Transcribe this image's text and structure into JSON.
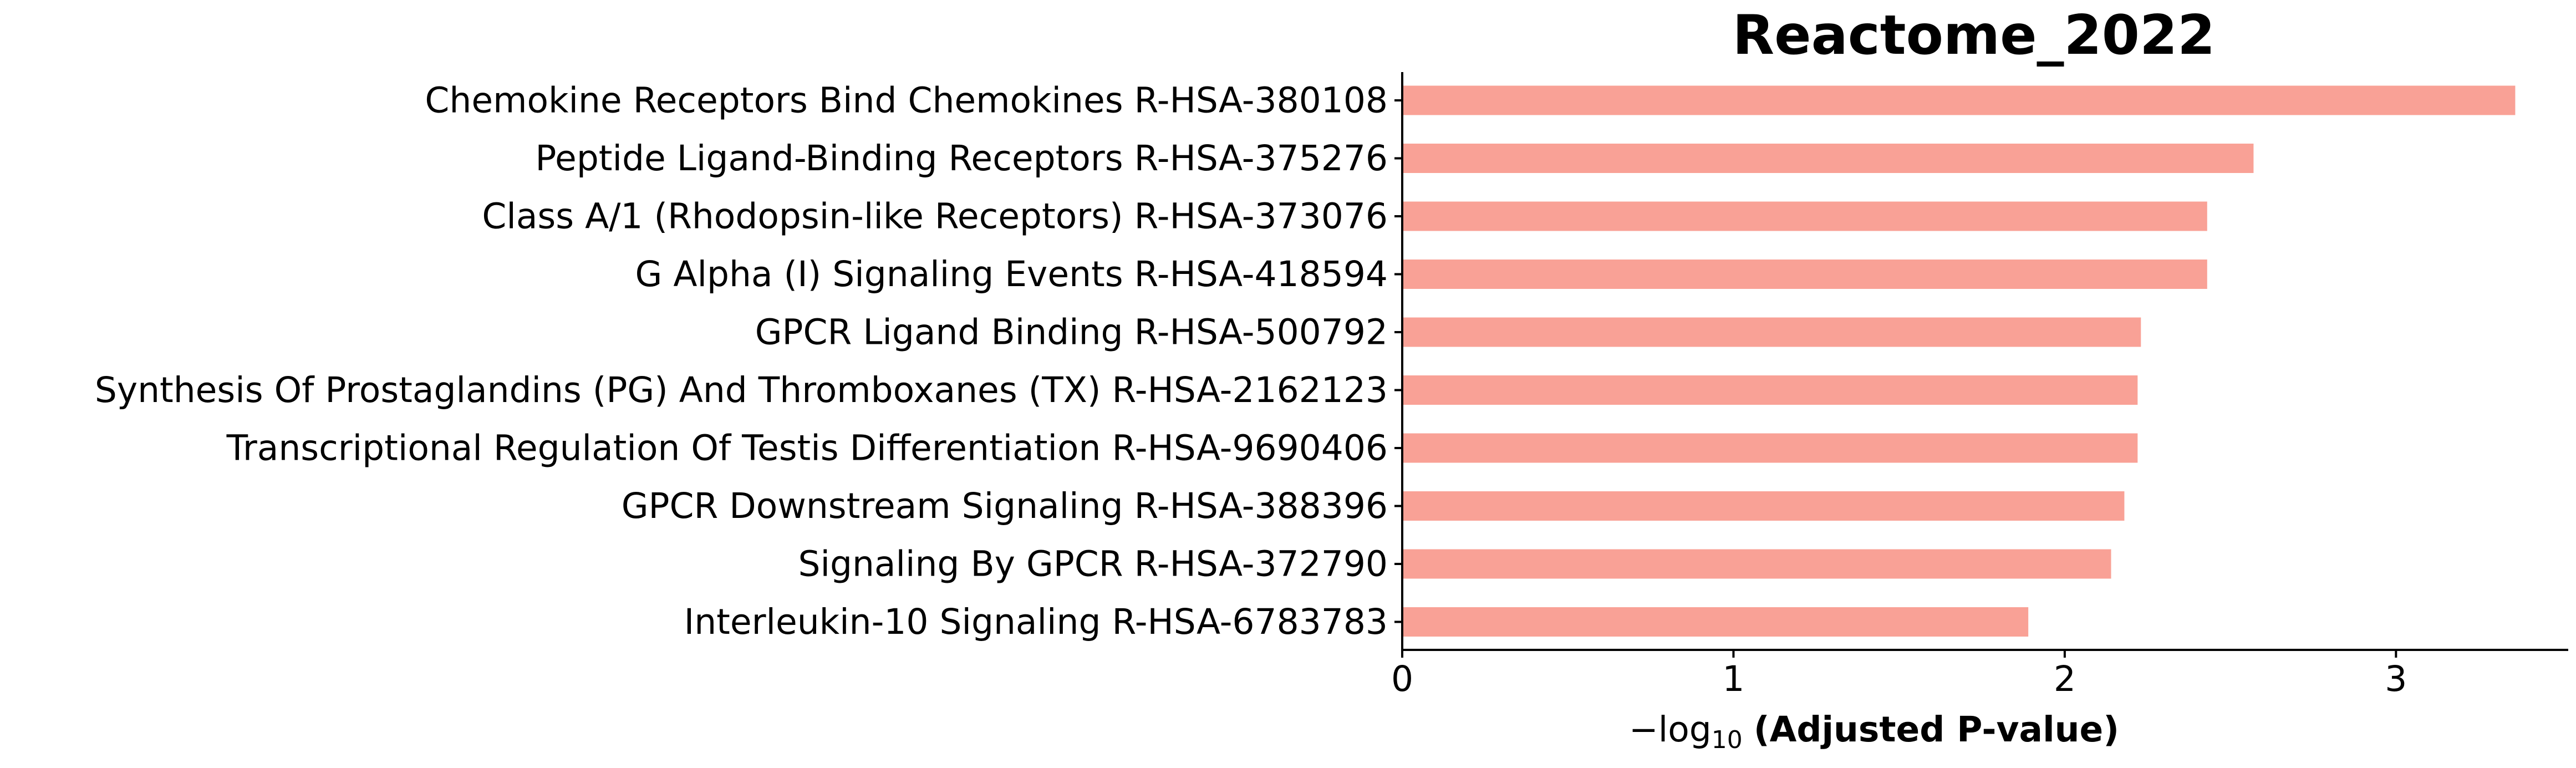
{
  "chart_data": {
    "type": "bar",
    "orientation": "horizontal",
    "title": "Reactome_2022",
    "xlabel": {
      "prefix": "−log",
      "subscript": "10",
      "bold_text": "(Adjusted P-value)"
    },
    "ylabel": "",
    "categories": [
      "Chemokine Receptors Bind Chemokines R-HSA-380108",
      "Peptide Ligand-Binding Receptors R-HSA-375276",
      "Class A/1 (Rhodopsin-like Receptors) R-HSA-373076",
      "G Alpha (I) Signaling Events R-HSA-418594",
      "GPCR Ligand Binding R-HSA-500792",
      "Synthesis Of Prostaglandins (PG) And Thromboxanes (TX) R-HSA-2162123",
      "Transcriptional Regulation Of Testis Differentiation R-HSA-9690406",
      "GPCR Downstream Signaling R-HSA-388396",
      "Signaling By GPCR R-HSA-372790",
      "Interleukin-10 Signaling R-HSA-6783783"
    ],
    "values": [
      3.36,
      2.57,
      2.43,
      2.43,
      2.23,
      2.22,
      2.22,
      2.18,
      2.14,
      1.89
    ],
    "xlim": [
      0,
      3.52
    ],
    "xticks": [
      0,
      1,
      2,
      3
    ],
    "xtick_labels": [
      "0",
      "1",
      "2",
      "3"
    ],
    "grid": false,
    "legend": "none",
    "bar_color": "#f9a196",
    "axis_color": "#000000"
  }
}
